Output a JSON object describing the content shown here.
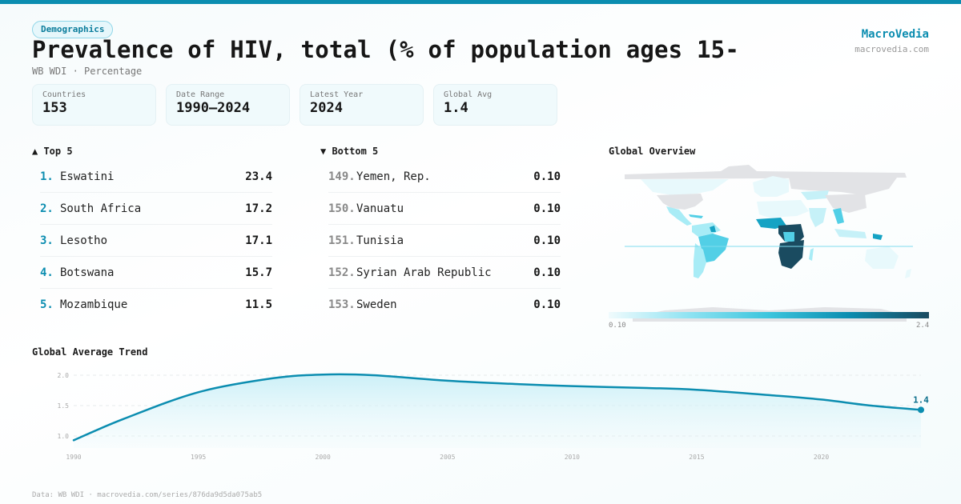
{
  "header": {
    "category_badge": "Demographics",
    "title": "Prevalence of HIV, total (% of population ages 15-",
    "subtitle": "WB WDI · Percentage"
  },
  "brand": {
    "name": "MacroVedia",
    "url": "macrovedia.com"
  },
  "stats": [
    {
      "label": "Countries",
      "value": "153"
    },
    {
      "label": "Date Range",
      "value": "1990–2024"
    },
    {
      "label": "Latest Year",
      "value": "2024"
    },
    {
      "label": "Global Avg",
      "value": "1.4"
    }
  ],
  "top5": {
    "title": "▲ Top 5",
    "items": [
      {
        "rank": "1.",
        "name": "Eswatini",
        "value": "23.4"
      },
      {
        "rank": "2.",
        "name": "South Africa",
        "value": "17.2"
      },
      {
        "rank": "3.",
        "name": "Lesotho",
        "value": "17.1"
      },
      {
        "rank": "4.",
        "name": "Botswana",
        "value": "15.7"
      },
      {
        "rank": "5.",
        "name": "Mozambique",
        "value": "11.5"
      }
    ]
  },
  "bottom5": {
    "title": "▼ Bottom 5",
    "items": [
      {
        "rank": "149.",
        "name": "Yemen, Rep.",
        "value": "0.10"
      },
      {
        "rank": "150.",
        "name": "Vanuatu",
        "value": "0.10"
      },
      {
        "rank": "151.",
        "name": "Tunisia",
        "value": "0.10"
      },
      {
        "rank": "152.",
        "name": "Syrian Arab Republic",
        "value": "0.10"
      },
      {
        "rank": "153.",
        "name": "Sweden",
        "value": "0.10"
      }
    ]
  },
  "map": {
    "title": "Global Overview",
    "legend_min": "0.10",
    "legend_max": "2.4",
    "colors": {
      "no_data": "#e2e3e6",
      "low": "#e8f9fc",
      "mid_low": "#a8ecf6",
      "mid": "#52cfe6",
      "mid_high": "#15a3c4",
      "high": "#1a4b60",
      "equator": "#7fdcef"
    }
  },
  "chart_data": {
    "type": "area",
    "title": "Global Average Trend",
    "x": [
      1990,
      1992,
      1995,
      1998,
      2000,
      2002,
      2005,
      2008,
      2010,
      2013,
      2015,
      2018,
      2020,
      2022,
      2024
    ],
    "values": [
      0.93,
      1.28,
      1.72,
      1.95,
      2.01,
      2.0,
      1.91,
      1.85,
      1.82,
      1.79,
      1.76,
      1.67,
      1.6,
      1.5,
      1.43
    ],
    "x_ticks": [
      1990,
      1995,
      2000,
      2005,
      2010,
      2015,
      2020
    ],
    "y_ticks": [
      "1.0",
      "1.5",
      "2.0"
    ],
    "ylim": [
      0.8,
      2.1
    ],
    "xlim": [
      1990,
      2024
    ],
    "last_label": "1.4",
    "grid": true,
    "line_color": "#0b8db0",
    "fill_color": "#c9eff7"
  },
  "footer": "Data: WB WDI · macrovedia.com/series/876da9d5da075ab5"
}
